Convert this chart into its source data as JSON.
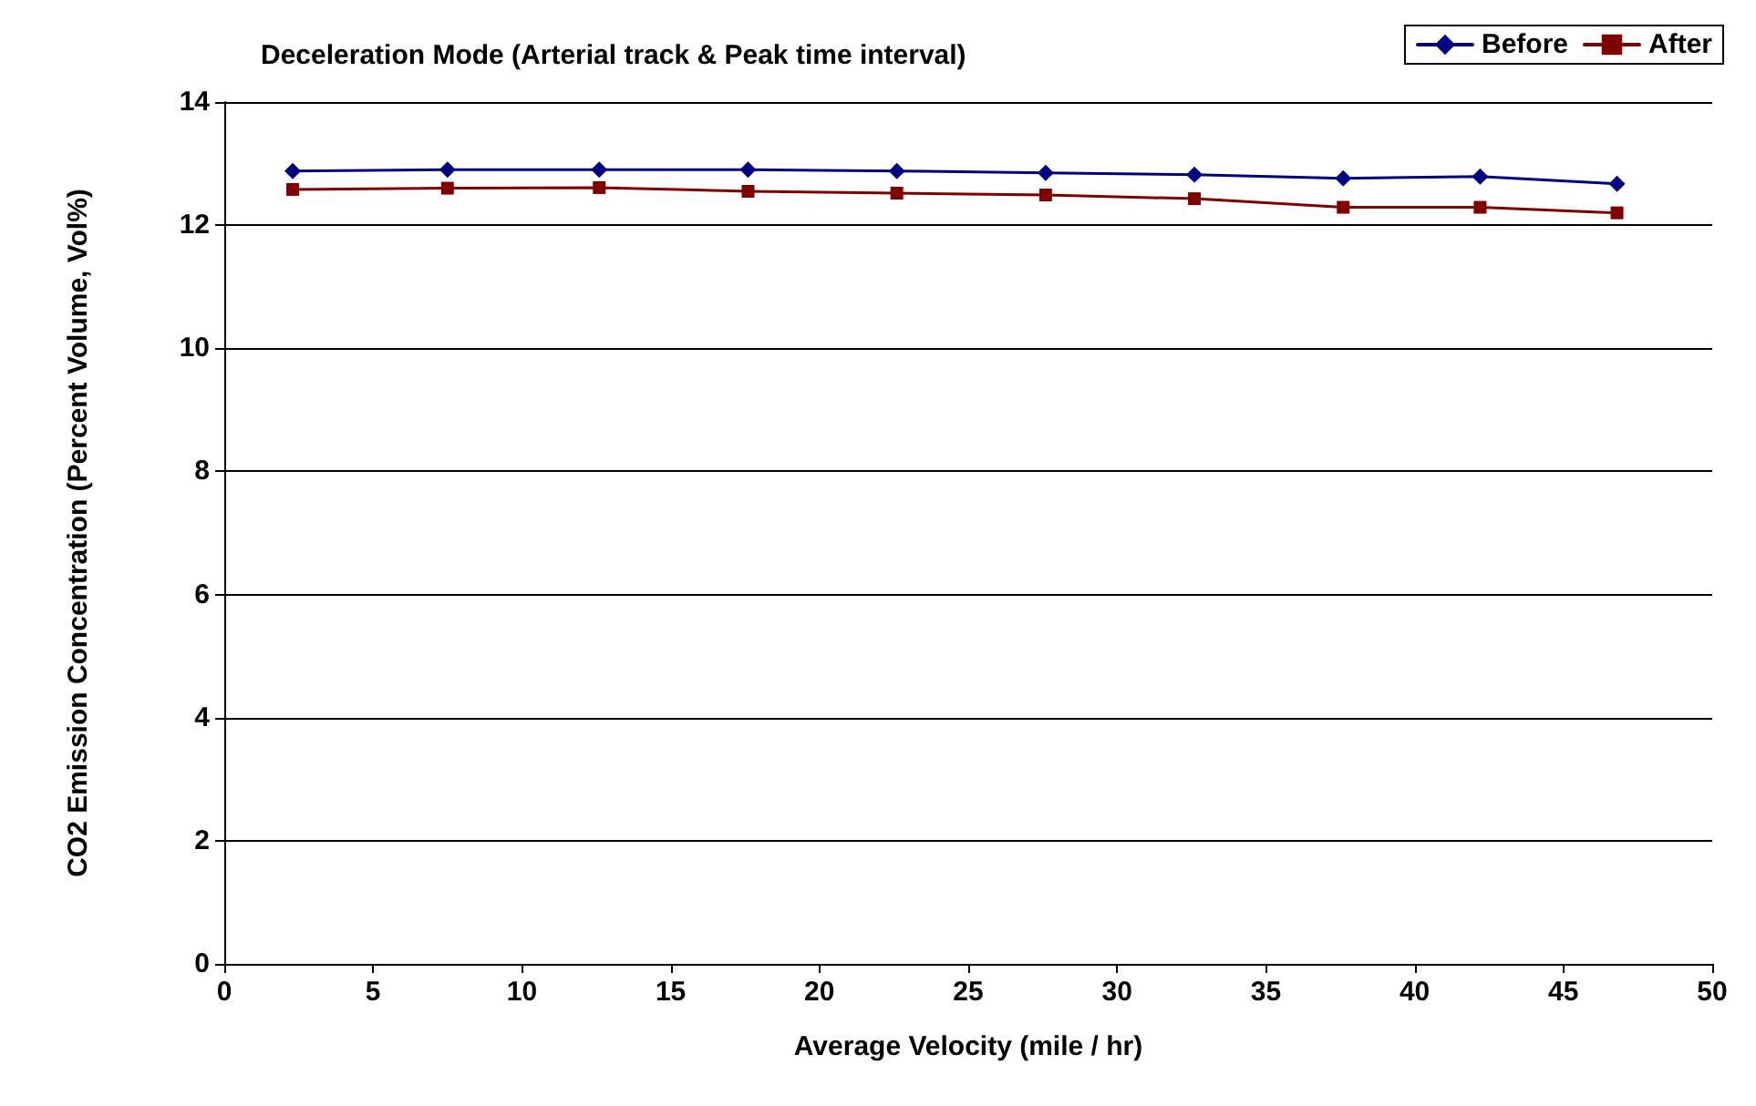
{
  "chart_data": {
    "type": "line",
    "title": "Deceleration Mode (Arterial track & Peak time interval)",
    "xlabel": "Average Velocity (mile / hr)",
    "ylabel": "CO2 Emission Concentration (Percent Volume, Vol%)",
    "x": [
      2.3,
      7.5,
      12.6,
      17.6,
      22.6,
      27.6,
      32.6,
      37.6,
      42.2,
      46.8
    ],
    "series": [
      {
        "name": "Before",
        "color": "#000080",
        "marker": "diamond",
        "values": [
          12.88,
          12.9,
          12.9,
          12.9,
          12.88,
          12.85,
          12.82,
          12.76,
          12.79,
          12.67
        ]
      },
      {
        "name": "After",
        "color": "#800000",
        "marker": "square",
        "values": [
          12.58,
          12.6,
          12.61,
          12.55,
          12.52,
          12.49,
          12.43,
          12.29,
          12.29,
          12.2
        ]
      }
    ],
    "xlim": [
      0,
      50
    ],
    "xticks": [
      0,
      5,
      10,
      15,
      20,
      25,
      30,
      35,
      40,
      45,
      50
    ],
    "ylim": [
      0,
      14
    ],
    "yticks": [
      0,
      2,
      4,
      6,
      8,
      10,
      12,
      14
    ],
    "grid": "y",
    "legend": "top right",
    "line_style": "solid"
  }
}
